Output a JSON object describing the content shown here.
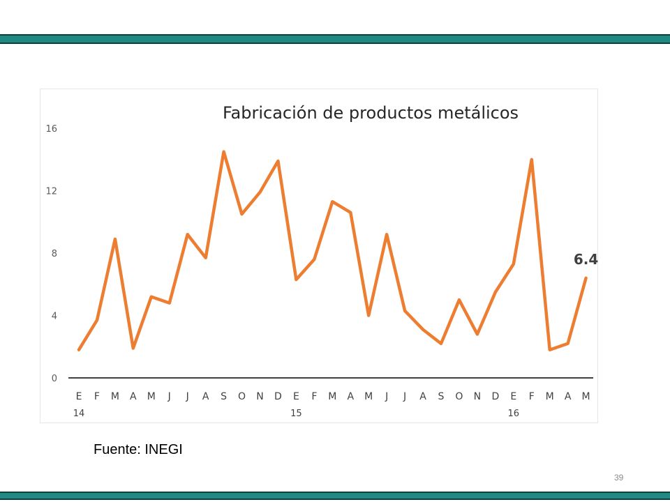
{
  "source": "Fuente: INEGI",
  "page_number": "39",
  "chart_data": {
    "type": "line",
    "title": "Fabricación de productos metálicos",
    "xlabel": "",
    "ylabel": "",
    "ylim": [
      0,
      16
    ],
    "yticks": [
      "0",
      "4",
      "8",
      "12",
      "16"
    ],
    "month_labels": [
      "E",
      "F",
      "M",
      "A",
      "M",
      "J",
      "J",
      "A",
      "S",
      "O",
      "N",
      "D",
      "E",
      "F",
      "M",
      "A",
      "M",
      "J",
      "J",
      "A",
      "S",
      "O",
      "N",
      "D",
      "E",
      "F",
      "M",
      "A",
      "M"
    ],
    "year_labels": [
      {
        "label": "14",
        "index": 0
      },
      {
        "label": "15",
        "index": 12
      },
      {
        "label": "16",
        "index": 24
      }
    ],
    "values": [
      1.8,
      3.7,
      8.9,
      1.9,
      5.2,
      4.8,
      9.2,
      7.7,
      14.5,
      10.5,
      11.9,
      13.9,
      6.3,
      7.6,
      11.3,
      10.6,
      4.0,
      9.2,
      4.3,
      3.1,
      2.2,
      5.0,
      2.8,
      5.5,
      7.3,
      14.0,
      1.8,
      2.2,
      6.4
    ],
    "line_color": "#ed7d31",
    "grid": false,
    "last_value_label": "6.4"
  }
}
